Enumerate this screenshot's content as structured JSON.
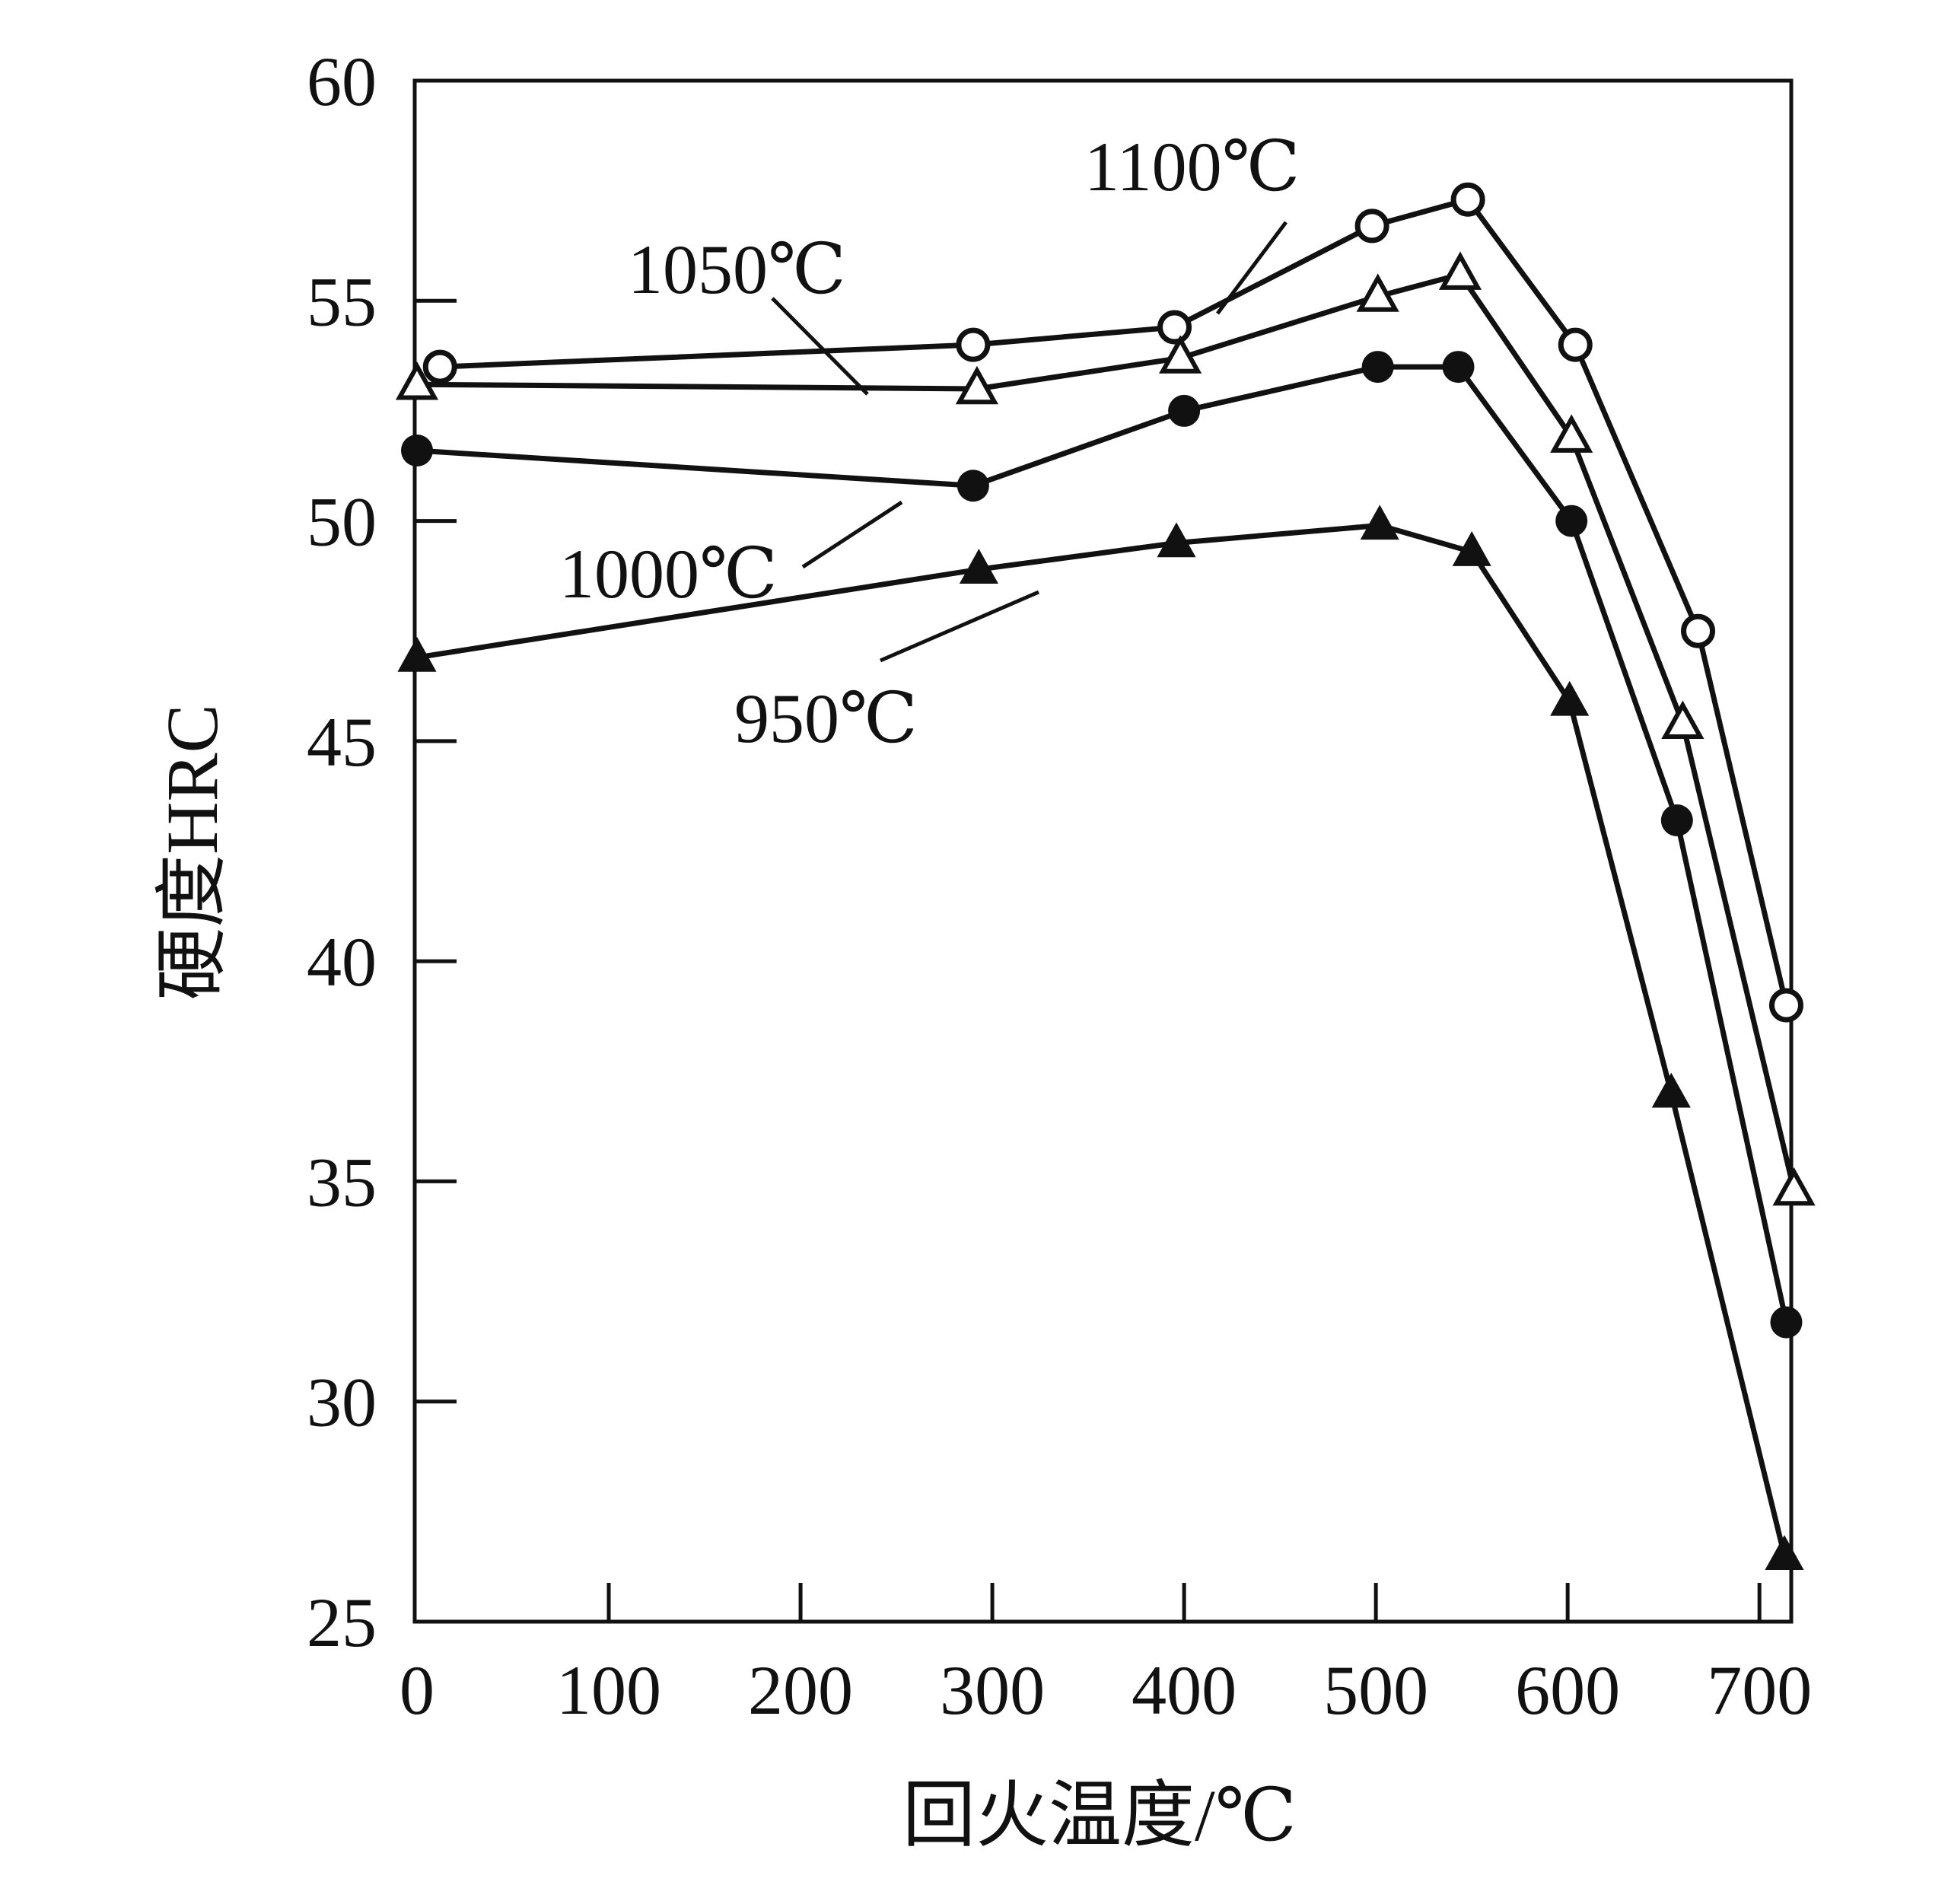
{
  "chart_data": {
    "type": "line",
    "title": "",
    "xlabel": "回火温度/℃",
    "ylabel": "硬度HRC",
    "xlim": [
      0,
      715
    ],
    "ylim": [
      25,
      60
    ],
    "x_ticks": [
      0,
      100,
      200,
      300,
      400,
      500,
      600,
      700
    ],
    "y_ticks": [
      25,
      30,
      35,
      40,
      45,
      50,
      55,
      60
    ],
    "grid": false,
    "colors": {
      "line": "#111111",
      "background": "#ffffff"
    },
    "series": [
      {
        "name": "1100℃",
        "marker": "circle-open",
        "x": [
          12,
          290,
          395,
          498,
          548,
          604,
          668,
          714
        ],
        "y": [
          53.5,
          54.0,
          54.4,
          56.7,
          57.3,
          54.0,
          47.5,
          39.0
        ]
      },
      {
        "name": "1050℃",
        "marker": "triangle-open",
        "x": [
          0,
          292,
          398,
          501,
          544,
          602,
          660,
          718
        ],
        "y": [
          53.1,
          53.0,
          53.7,
          55.1,
          55.6,
          51.9,
          45.4,
          34.8
        ]
      },
      {
        "name": "1000℃",
        "marker": "circle-filled",
        "x": [
          0,
          290,
          400,
          501,
          543,
          602,
          657,
          714
        ],
        "y": [
          51.6,
          50.8,
          52.5,
          53.5,
          53.5,
          50.0,
          43.2,
          31.8
        ]
      },
      {
        "name": "950℃",
        "marker": "triangle-filled",
        "x": [
          0,
          293,
          396,
          502,
          550,
          601,
          654,
          713
        ],
        "y": [
          46.9,
          48.9,
          49.5,
          49.9,
          49.3,
          45.9,
          37.0,
          26.5
        ]
      }
    ]
  }
}
